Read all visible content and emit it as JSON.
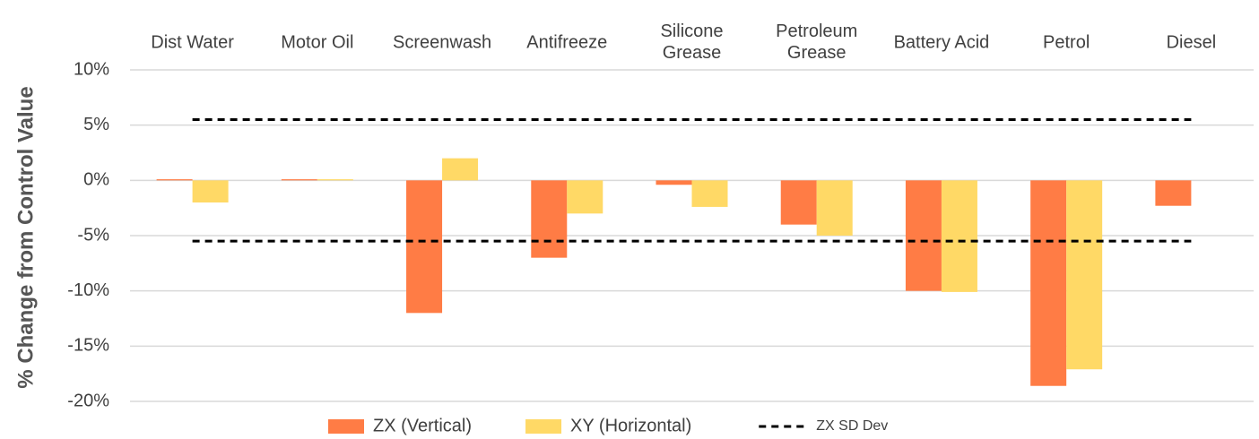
{
  "chart_data": {
    "type": "bar",
    "y_label": "% Change from Control Value",
    "categories": [
      "Dist Water",
      "Motor Oil",
      "Screenwash",
      "Antifreeze",
      "Silicone\nGrease",
      "Petroleum\nGrease",
      "Battery Acid",
      "Petrol",
      "Diesel"
    ],
    "series": [
      {
        "name": "ZX (Vertical)",
        "color": "#ff7c45",
        "values": [
          0.1,
          0.1,
          -12,
          -7,
          -0.4,
          -4,
          -10,
          -18.6,
          -2.3
        ]
      },
      {
        "name": "XY (Horizontal)",
        "color": "#ffd966",
        "values": [
          -2,
          0.1,
          2,
          -3,
          -2.4,
          -5,
          -10.1,
          -17.1,
          null
        ]
      }
    ],
    "reference_lines": {
      "name": "ZX SD Dev",
      "color": "#000000",
      "values": [
        5.5,
        -5.5
      ]
    },
    "ylim": [
      -20,
      10
    ],
    "yticks": [
      {
        "value": -20,
        "label": "-20%"
      },
      {
        "value": -15,
        "label": "-15%"
      },
      {
        "value": -10,
        "label": "-10%"
      },
      {
        "value": -5,
        "label": "-5%"
      },
      {
        "value": 0,
        "label": "0%"
      },
      {
        "value": 5,
        "label": "5%"
      },
      {
        "value": 10,
        "label": "10%"
      }
    ],
    "grid": true,
    "legend": "bottom"
  }
}
